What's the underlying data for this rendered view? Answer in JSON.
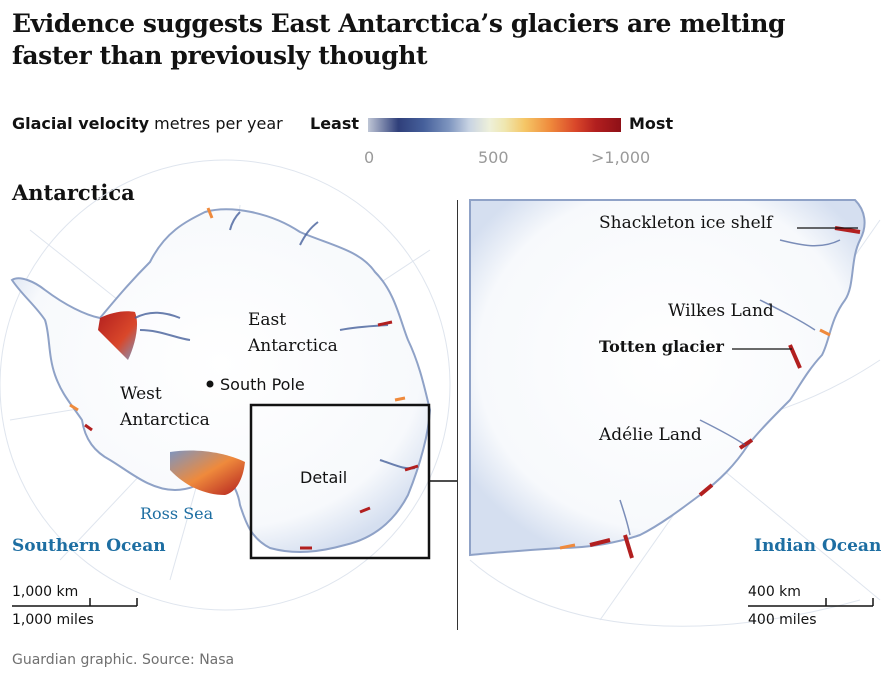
{
  "headline": "Evidence suggests East Antarctica’s glaciers are melting faster than previously thought",
  "legend": {
    "label_bold": "Glacial velocity",
    "label_unit": "metres per year",
    "least": "Least",
    "most": "Most",
    "ticks": [
      "0",
      "500",
      ">1,000"
    ]
  },
  "left_map": {
    "title": "Antarctica",
    "labels": {
      "east_line1": "East",
      "east_line2": "Antarctica",
      "south_pole": "South Pole",
      "west_line1": "West",
      "west_line2": "Antarctica",
      "detail": "Detail",
      "ross_sea": "Ross Sea",
      "southern_ocean": "Southern Ocean"
    },
    "scale": {
      "km": "1,000 km",
      "miles": "1,000 miles"
    }
  },
  "right_map": {
    "labels": {
      "shackleton": "Shackleton ice shelf",
      "wilkes": "Wilkes Land",
      "totten": "Totten glacier",
      "adelie": "Adélie Land",
      "indian_ocean": "Indian Ocean"
    },
    "scale": {
      "km": "400 km",
      "miles": "400 miles"
    }
  },
  "source": "Guardian graphic. Source: Nasa",
  "colors": {
    "fast": "#b21f1f",
    "medium": "#ef8a3c",
    "slow": "#46609b",
    "ocean_label": "#1d6ea2"
  }
}
